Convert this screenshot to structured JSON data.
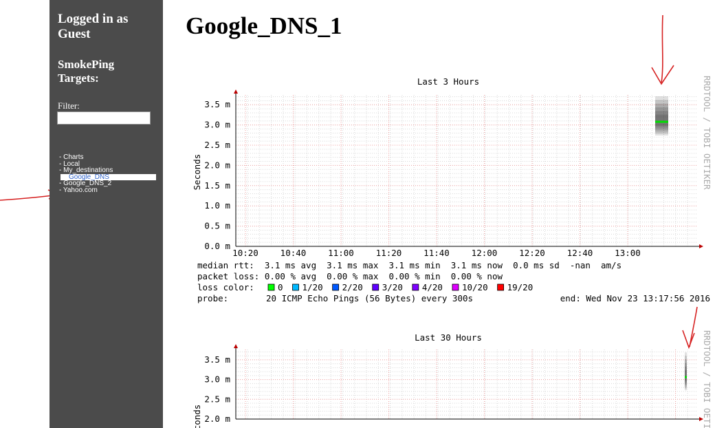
{
  "sidebar": {
    "login": "Logged in as Guest",
    "targets_heading": "SmokePing Targets:",
    "filter_label": "Filter:",
    "menu": [
      {
        "text": "- Charts"
      },
      {
        "text": "- Local"
      },
      {
        "text": "- My_destinations"
      },
      {
        "text": "Google_DNS",
        "selected": true
      },
      {
        "text": "- Google_DNS_2"
      },
      {
        "text": "- Yahoo.com"
      }
    ]
  },
  "main": {
    "title": "Google_DNS_1",
    "graphs": [
      {
        "title": "Last 3 Hours",
        "y_label": "Seconds",
        "credit": "RRDTOOL / TOBI OETIKER",
        "yticks": [
          "0.0 m",
          "0.5 m",
          "1.0 m",
          "1.5 m",
          "2.0 m",
          "2.5 m",
          "3.0 m",
          "3.5 m"
        ],
        "xticks": [
          "10:20",
          "10:40",
          "11:00",
          "11:20",
          "11:40",
          "12:00",
          "12:20",
          "12:40",
          "13:00"
        ],
        "legend": {
          "median_rtt": "median rtt:  3.1 ms avg  3.1 ms max  3.1 ms min  3.1 ms now  0.0 ms sd  -nan  am/s",
          "packet_loss": "packet loss: 0.00 % avg  0.00 % max  0.00 % min  0.00 % now",
          "loss_color_label": "loss color:",
          "loss_colors": [
            {
              "label": "0",
              "color": "#00ff00"
            },
            {
              "label": "1/20",
              "color": "#00b8ff"
            },
            {
              "label": "2/20",
              "color": "#0059ff"
            },
            {
              "label": "3/20",
              "color": "#5e00ff"
            },
            {
              "label": "4/20",
              "color": "#7e00ff"
            },
            {
              "label": "10/20",
              "color": "#dd00ff"
            },
            {
              "label": "19/20",
              "color": "#ff0000"
            }
          ],
          "probe_label": "probe:",
          "probe": "20 ICMP Echo Pings (56 Bytes) every 300s",
          "end": "end: Wed Nov 23 13:17:56 2016"
        }
      },
      {
        "title": "Last 30 Hours",
        "y_label": "Seconds",
        "credit": "RRDTOOL / TOBI OETIKER",
        "yticks": [
          "2.0 m",
          "2.5 m",
          "3.0 m",
          "3.5 m"
        ]
      }
    ]
  }
}
